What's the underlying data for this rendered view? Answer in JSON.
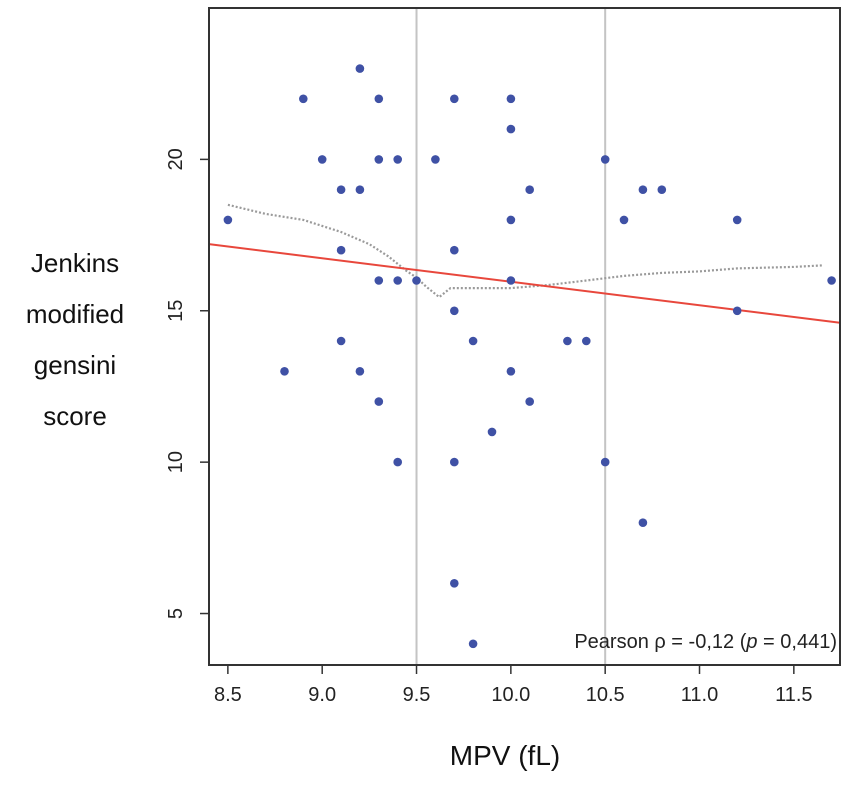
{
  "chart_data": {
    "type": "scatter",
    "xlabel": "MPV (fL)",
    "ylabel_lines": [
      "Jenkins",
      "modified",
      "gensini",
      "score"
    ],
    "xlim": [
      8.4,
      11.75
    ],
    "ylim": [
      3.3,
      25.0
    ],
    "x_ticks": [
      8.5,
      9.0,
      9.5,
      10.0,
      10.5,
      11.0,
      11.5
    ],
    "x_tick_labels": [
      "8.5",
      "9.0",
      "9.5",
      "10.0",
      "10.5",
      "11.0",
      "11.5"
    ],
    "y_ticks": [
      5,
      10,
      15,
      20
    ],
    "y_tick_labels": [
      "5",
      "10",
      "15",
      "20"
    ],
    "vertical_reference_lines": [
      9.5,
      10.5
    ],
    "points": [
      [
        8.5,
        18
      ],
      [
        8.8,
        13
      ],
      [
        8.9,
        22
      ],
      [
        9.0,
        20
      ],
      [
        9.1,
        19
      ],
      [
        9.1,
        17
      ],
      [
        9.1,
        14
      ],
      [
        9.2,
        23
      ],
      [
        9.2,
        19
      ],
      [
        9.2,
        13
      ],
      [
        9.3,
        22
      ],
      [
        9.3,
        20
      ],
      [
        9.3,
        16
      ],
      [
        9.3,
        12
      ],
      [
        9.4,
        20
      ],
      [
        9.4,
        16
      ],
      [
        9.4,
        10
      ],
      [
        9.5,
        16
      ],
      [
        9.6,
        20
      ],
      [
        9.7,
        22
      ],
      [
        9.7,
        17
      ],
      [
        9.7,
        15
      ],
      [
        9.7,
        10
      ],
      [
        9.7,
        6
      ],
      [
        9.8,
        14
      ],
      [
        9.8,
        4
      ],
      [
        9.9,
        11
      ],
      [
        10.0,
        22
      ],
      [
        10.0,
        21
      ],
      [
        10.0,
        18
      ],
      [
        10.0,
        16
      ],
      [
        10.0,
        13
      ],
      [
        10.1,
        19
      ],
      [
        10.1,
        12
      ],
      [
        10.3,
        14
      ],
      [
        10.4,
        14
      ],
      [
        10.5,
        20
      ],
      [
        10.5,
        10
      ],
      [
        10.6,
        18
      ],
      [
        10.7,
        19
      ],
      [
        10.7,
        8
      ],
      [
        10.8,
        19
      ],
      [
        11.2,
        18
      ],
      [
        11.2,
        15
      ],
      [
        11.7,
        16
      ]
    ],
    "regression_line": [
      [
        8.4,
        17.2
      ],
      [
        11.75,
        14.6
      ]
    ],
    "loess_curve": [
      [
        8.5,
        18.5
      ],
      [
        8.7,
        18.2
      ],
      [
        8.9,
        18.0
      ],
      [
        9.1,
        17.6
      ],
      [
        9.25,
        17.2
      ],
      [
        9.35,
        16.8
      ],
      [
        9.45,
        16.3
      ],
      [
        9.5,
        16.1
      ],
      [
        9.55,
        15.8
      ],
      [
        9.62,
        15.45
      ],
      [
        9.68,
        15.75
      ],
      [
        9.8,
        15.75
      ],
      [
        10.0,
        15.75
      ],
      [
        10.2,
        15.85
      ],
      [
        10.4,
        16.0
      ],
      [
        10.6,
        16.15
      ],
      [
        10.8,
        16.25
      ],
      [
        11.0,
        16.3
      ],
      [
        11.2,
        16.4
      ],
      [
        11.5,
        16.45
      ],
      [
        11.65,
        16.5
      ]
    ],
    "annotation": {
      "prefix": "Pearson ρ = -0,12 (",
      "italic": "p",
      "suffix": " = 0,441)"
    },
    "colors": {
      "points": "#3f51a5",
      "regression": "#e8473c",
      "loess": "#9a9a9a",
      "reference_lines": "#c4c4c4",
      "frame": "#333333"
    }
  }
}
